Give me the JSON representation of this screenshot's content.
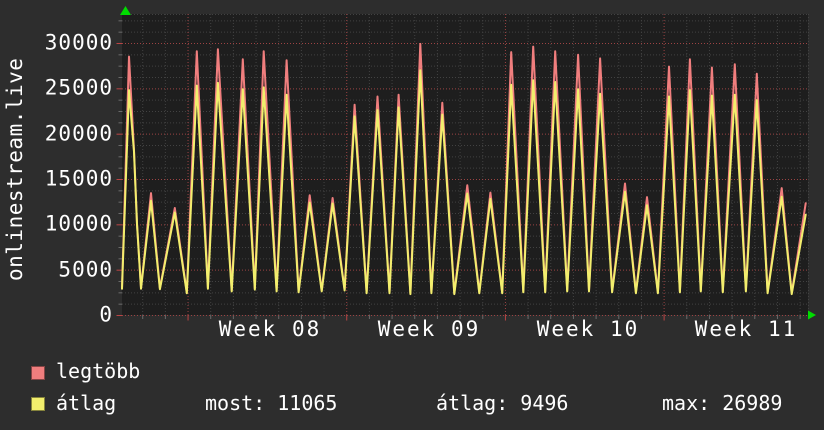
{
  "chart": {
    "vertical_label": "onlinestream.live"
  },
  "legend": {
    "series": [
      {
        "label": "legtöbb",
        "color": "#f07e7e"
      },
      {
        "label": "átlag",
        "color": "#f2ee6d"
      }
    ],
    "stats": [
      {
        "label": "most",
        "value": 11065,
        "text": "most: 11065"
      },
      {
        "label": "átlag",
        "value": 9496,
        "text": "átlag: 9496"
      },
      {
        "label": "max",
        "value": 26989,
        "text": "max: 26989"
      }
    ]
  },
  "colors": {
    "background": "#2d2d2d",
    "canvas": "#1e1e1e",
    "text": "#ffffff",
    "minor_grid": "#424242",
    "major_grid_red": "#9c4343",
    "tick_red": "#bb4444",
    "tick_gray": "#6a6a6a",
    "arrow_green": "#00dc00",
    "series_max": "#f07e7e",
    "series_avg": "#f2ee6d"
  },
  "chart_data": {
    "type": "line",
    "title": "onlinestream.live",
    "xlabel": "",
    "ylabel": "onlinestream.live",
    "ylim": [
      0,
      33200
    ],
    "grid": true,
    "legend_position": "bottom-left",
    "x_axis": {
      "unit": "days",
      "span_days": 30.2,
      "week_labels": [
        "Week 08",
        "Week 09",
        "Week 10",
        "Week 11"
      ]
    },
    "y_axis": {
      "tick_values": [
        0,
        5000,
        10000,
        15000,
        20000,
        25000,
        30000
      ],
      "tick_labels": [
        "0",
        "5000",
        "10000",
        "15000",
        "20000",
        "25000",
        "30000"
      ],
      "minor_step": 1250
    },
    "x": [
      0,
      0.31,
      0.53,
      0.66,
      0.84,
      1.28,
      1.67,
      2.33,
      2.86,
      3.3,
      3.79,
      4.23,
      4.84,
      5.33,
      5.86,
      6.25,
      6.82,
      7.26,
      7.79,
      8.28,
      8.81,
      9.29,
      9.82,
      10.26,
      10.79,
      11.27,
      11.8,
      12.2,
      12.72,
      13.16,
      13.65,
      14.13,
      14.66,
      15.23,
      15.76,
      16.25,
      16.77,
      17.17,
      17.7,
      18.14,
      18.67,
      19.11,
      19.64,
      20.12,
      20.6,
      21.09,
      21.62,
      22.19,
      22.67,
      23.16,
      23.64,
      24.13,
      24.61,
      25.05,
      25.53,
      26.02,
      26.5,
      27.03,
      27.52,
      28,
      28.48,
      29.1,
      29.54,
      30.16
    ],
    "series": [
      {
        "name": "legtöbb",
        "color": "#f07e7e",
        "values": [
          3000,
          28500,
          18200,
          10100,
          3000,
          13450,
          2950,
          11800,
          2500,
          29100,
          3000,
          29300,
          2700,
          28200,
          2900,
          29100,
          2700,
          28100,
          2600,
          13200,
          2700,
          12900,
          2800,
          23200,
          2500,
          24100,
          2500,
          24300,
          2400,
          29900,
          2500,
          23400,
          2400,
          14300,
          2500,
          13500,
          2500,
          29000,
          2600,
          29600,
          2600,
          29100,
          2700,
          28700,
          2700,
          28300,
          2600,
          14500,
          2500,
          13000,
          2500,
          27400,
          2600,
          28200,
          2700,
          27300,
          2600,
          27650,
          2700,
          26600,
          2500,
          14000,
          2400,
          12320
        ]
      },
      {
        "name": "átlag",
        "color": "#f2ee6d",
        "values": [
          2900,
          24800,
          18000,
          10000,
          2900,
          12600,
          2850,
          11300,
          2400,
          25300,
          2900,
          25600,
          2600,
          24900,
          2800,
          25100,
          2600,
          24300,
          2500,
          12400,
          2600,
          12300,
          2700,
          21900,
          2400,
          22600,
          2400,
          22900,
          2300,
          26989,
          2400,
          22100,
          2300,
          13400,
          2400,
          12800,
          2400,
          25400,
          2500,
          25900,
          2500,
          25700,
          2600,
          24900,
          2600,
          24400,
          2500,
          13600,
          2400,
          12100,
          2400,
          24100,
          2500,
          24800,
          2600,
          24200,
          2500,
          24300,
          2600,
          23700,
          2400,
          13050,
          2300,
          11065
        ]
      }
    ]
  }
}
